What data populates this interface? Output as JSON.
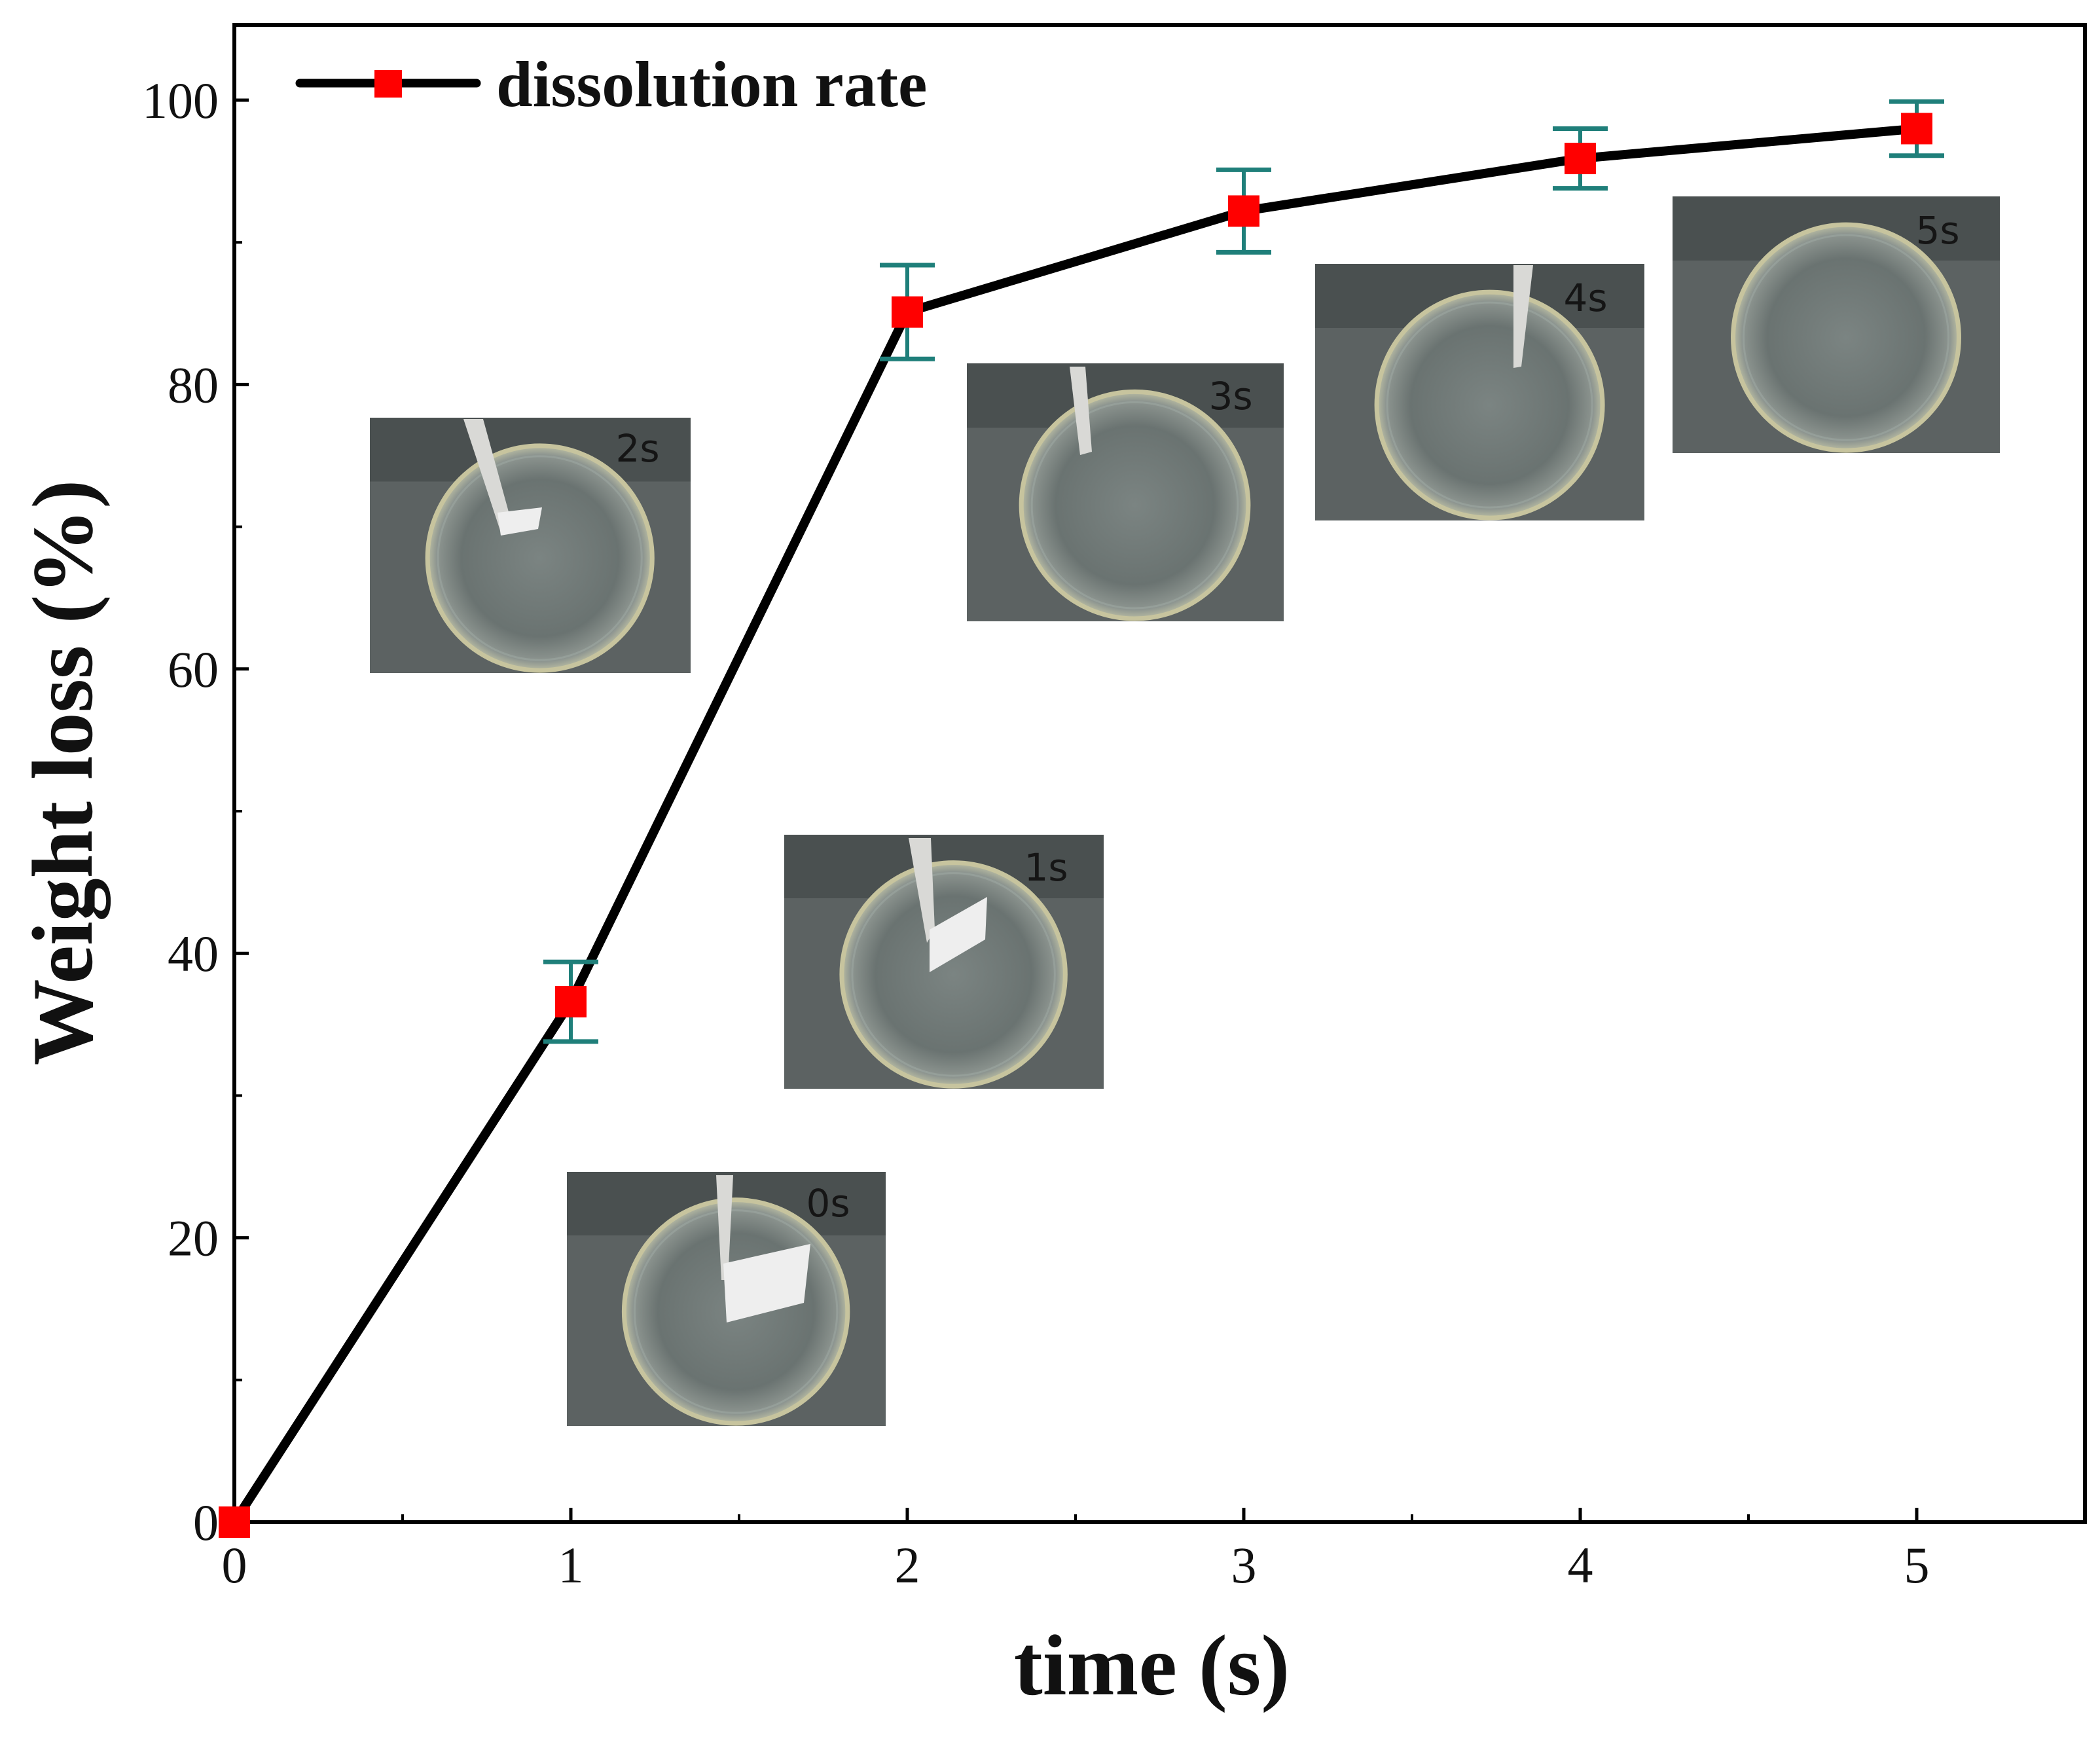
{
  "chart_data": {
    "type": "line",
    "xlabel": "time (s)",
    "ylabel": "Weight loss (%)",
    "xlim": [
      0,
      5.5
    ],
    "ylim": [
      0,
      105
    ],
    "x_ticks": [
      0,
      1,
      2,
      3,
      4,
      5
    ],
    "y_ticks": [
      0,
      20,
      40,
      60,
      80,
      100
    ],
    "grid": false,
    "legend_position": "top-left",
    "series": [
      {
        "name": "dissolution rate",
        "x": [
          0,
          1,
          2,
          3,
          4,
          5
        ],
        "y": [
          0,
          36.6,
          85.1,
          92.2,
          95.9,
          98.0
        ],
        "error": [
          0,
          2.8,
          3.3,
          2.9,
          2.1,
          1.9
        ],
        "line_color": "#000000",
        "marker_color": "#ff0000",
        "errorbar_color": "#1f7f7a"
      }
    ],
    "insets": [
      {
        "label": "0s",
        "time": 0
      },
      {
        "label": "1s",
        "time": 1
      },
      {
        "label": "2s",
        "time": 2
      },
      {
        "label": "3s",
        "time": 3
      },
      {
        "label": "4s",
        "time": 4
      },
      {
        "label": "5s",
        "time": 5
      }
    ]
  }
}
